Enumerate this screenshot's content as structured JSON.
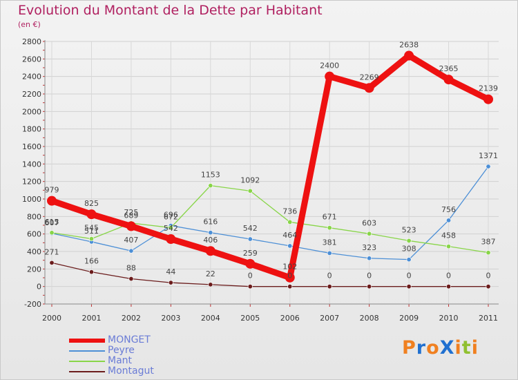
{
  "chart_data": {
    "type": "line",
    "title": "Evolution du Montant de la Dette par Habitant",
    "subtitle": "(en €)",
    "x": [
      "2000",
      "2001",
      "2002",
      "2003",
      "2004",
      "2005",
      "2006",
      "2007",
      "2008",
      "2009",
      "2010",
      "2011"
    ],
    "yticks": [
      -200,
      0,
      200,
      400,
      600,
      800,
      1000,
      1200,
      1400,
      1600,
      1800,
      2000,
      2200,
      2400,
      2600,
      2800
    ],
    "ylim": [
      -200,
      2800
    ],
    "grid": true,
    "legend_position": "bottom-left",
    "series": [
      {
        "name": "MONGET",
        "color": "#ee1111",
        "values": [
          979,
          825,
          689,
          542,
          406,
          259,
          102,
          2400,
          2269,
          2638,
          2365,
          2139
        ]
      },
      {
        "name": "Peyre",
        "color": "#4c8fd6",
        "values": [
          607,
          511,
          407,
          696,
          616,
          542,
          464,
          381,
          323,
          308,
          756,
          1371
        ]
      },
      {
        "name": "Mant",
        "color": "#88d548",
        "values": [
          615,
          545,
          725,
          672,
          1153,
          1092,
          736,
          671,
          603,
          523,
          458,
          387
        ]
      },
      {
        "name": "Montagut",
        "color": "#6b1c1c",
        "values": [
          271,
          166,
          88,
          44,
          22,
          0,
          0,
          0,
          0,
          0,
          0,
          0
        ]
      }
    ]
  },
  "logo": {
    "text": "ProXiti",
    "colors": [
      "#f08020",
      "#2070d0",
      "#f08020",
      "#2070d0",
      "#f08020",
      "#90c030",
      "#f08020"
    ]
  }
}
